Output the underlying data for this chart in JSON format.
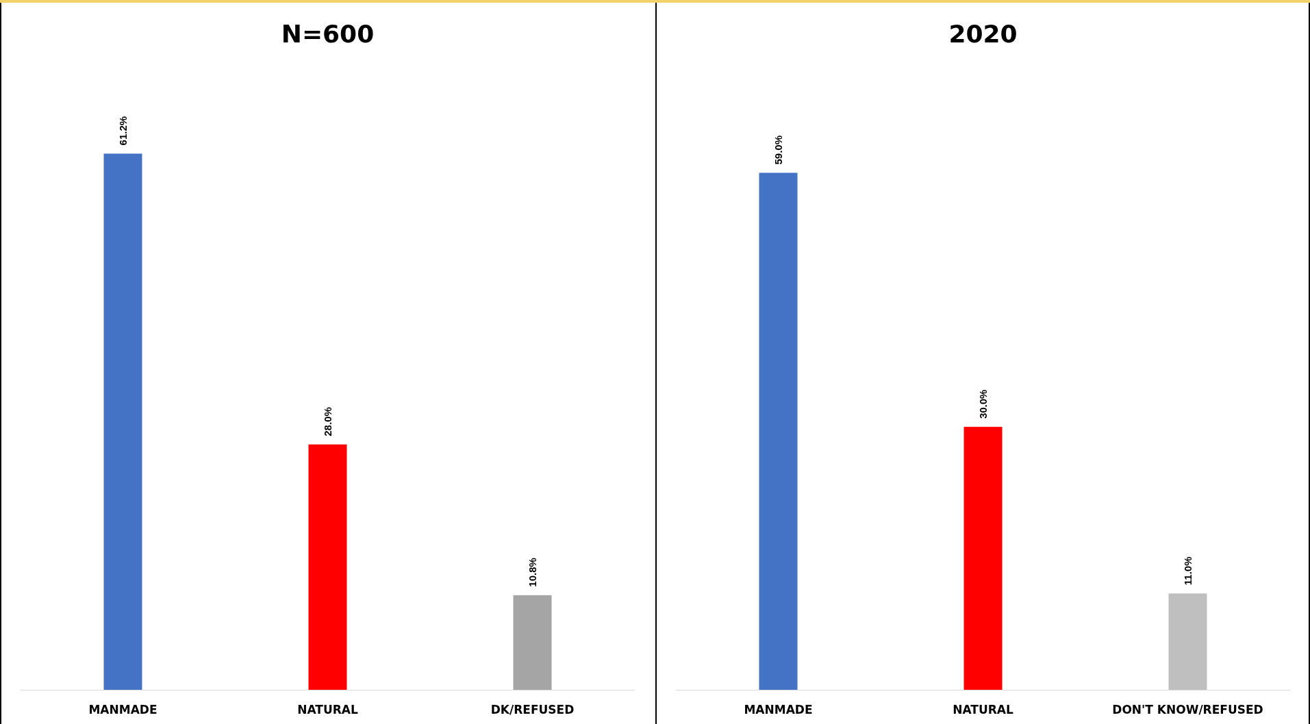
{
  "chart_data": [
    {
      "type": "bar",
      "title": "N=600",
      "categories": [
        "MANMADE",
        "NATURAL",
        "DK/REFUSED"
      ],
      "values": [
        61.2,
        28.0,
        10.8
      ],
      "colors": [
        "#4472c4",
        "#ff0000",
        "#a5a5a5"
      ],
      "value_labels": [
        "61.2%",
        "28.0%",
        "10.8%"
      ]
    },
    {
      "type": "bar",
      "title": "2020",
      "categories": [
        "MANMADE",
        "NATURAL",
        "DON'T KNOW/REFUSED"
      ],
      "values": [
        59.0,
        30.0,
        11.0
      ],
      "colors": [
        "#4472c4",
        "#ff0000",
        "#bfbfbf"
      ],
      "value_labels": [
        "59.0%",
        "30.0%",
        "11.0%"
      ]
    }
  ]
}
